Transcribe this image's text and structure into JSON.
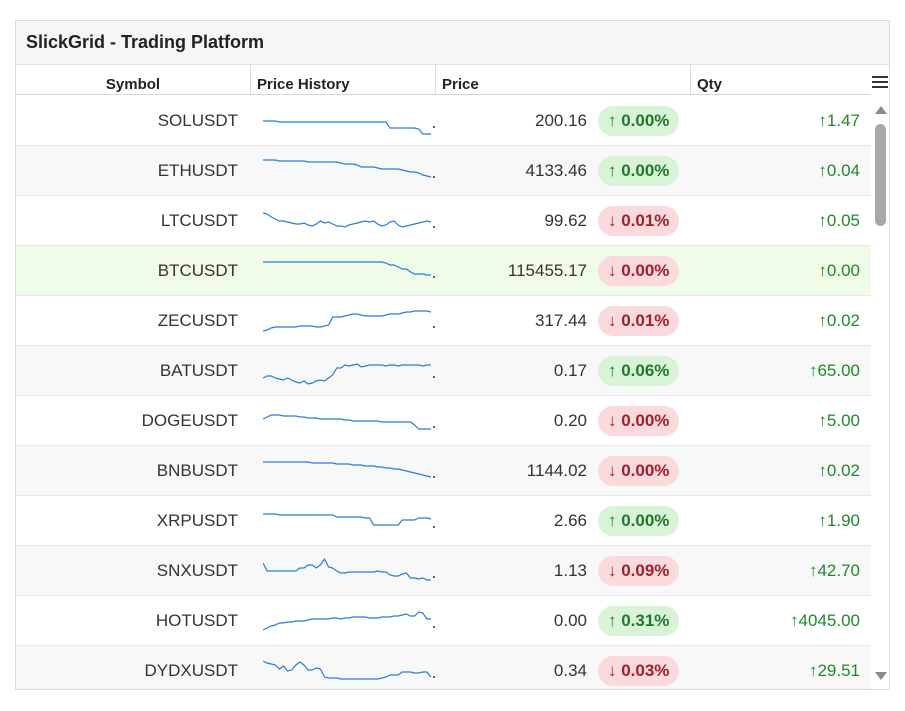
{
  "title": "SlickGrid - Trading Platform",
  "columns": {
    "symbol": "Symbol",
    "history": "Price History",
    "price": "Price",
    "qty": "Qty"
  },
  "colors": {
    "sparkline": "#2b7bd9",
    "up_text": "#1f7a2e",
    "down_text": "#a0202e",
    "active_row": "#f0fbe8"
  },
  "rows": [
    {
      "symbol": "SOLUSDT",
      "price": "200.16",
      "change": "↑ 0.00%",
      "dir": "up",
      "qty": "↑1.47",
      "history": [
        20,
        20,
        20,
        20,
        21,
        21,
        21,
        21,
        21,
        21,
        21,
        21,
        21,
        21,
        21,
        21,
        21,
        21,
        21,
        21,
        21,
        21,
        21,
        21,
        21,
        21,
        21,
        21,
        21,
        21,
        21,
        27,
        27,
        27,
        27,
        27,
        27,
        27,
        28,
        33,
        33,
        33
      ]
    },
    {
      "symbol": "ETHUSDT",
      "price": "4133.46",
      "change": "↑ 0.00%",
      "dir": "up",
      "qty": "↑0.04",
      "history": [
        9,
        9,
        9,
        9,
        10,
        10,
        10,
        10,
        10,
        10,
        10,
        11,
        11,
        11,
        11,
        11,
        11,
        11,
        11,
        12,
        13,
        13,
        13,
        14,
        16,
        16,
        16,
        16,
        17,
        18,
        18,
        18,
        18,
        18,
        19,
        20,
        21,
        21,
        22,
        24,
        25,
        26
      ]
    },
    {
      "symbol": "LTCUSDT",
      "price": "99.62",
      "change": "↓ 0.01%",
      "dir": "down",
      "qty": "↑0.05",
      "history": [
        12,
        13,
        16,
        18,
        20,
        20,
        21,
        22,
        23,
        23,
        22,
        24,
        25,
        23,
        20,
        22,
        21,
        23,
        25,
        25,
        26,
        24,
        23,
        22,
        21,
        20,
        21,
        20,
        23,
        25,
        24,
        21,
        20,
        24,
        26,
        25,
        24,
        23,
        22,
        21,
        20,
        21
      ]
    },
    {
      "symbol": "BTCUSDT",
      "price": "115455.17",
      "change": "↓ 0.00%",
      "dir": "down",
      "qty": "↑0.00",
      "history": [
        11,
        11,
        11,
        11,
        11,
        11,
        11,
        11,
        11,
        11,
        11,
        11,
        11,
        11,
        11,
        11,
        11,
        11,
        11,
        11,
        11,
        11,
        11,
        11,
        11,
        11,
        11,
        11,
        11,
        11,
        12,
        14,
        14,
        16,
        18,
        18,
        21,
        23,
        23,
        23,
        24,
        24
      ]
    },
    {
      "symbol": "ZECUSDT",
      "price": "317.44",
      "change": "↓ 0.01%",
      "dir": "down",
      "qty": "↑0.02",
      "history": [
        30,
        29,
        27,
        26,
        26,
        26,
        26,
        26,
        26,
        25,
        25,
        25,
        25,
        26,
        26,
        25,
        24,
        16,
        16,
        16,
        15,
        14,
        13,
        13,
        14,
        15,
        15,
        15,
        15,
        15,
        14,
        13,
        13,
        13,
        12,
        11,
        11,
        10,
        10,
        10,
        10,
        11
      ]
    },
    {
      "symbol": "BATUSDT",
      "price": "0.17",
      "change": "↑ 0.06%",
      "dir": "up",
      "qty": "↑65.00",
      "history": [
        27,
        25,
        25,
        27,
        28,
        29,
        27,
        29,
        31,
        32,
        30,
        33,
        32,
        30,
        29,
        30,
        27,
        24,
        17,
        17,
        14,
        15,
        14,
        13,
        16,
        15,
        14,
        14,
        14,
        14,
        15,
        14,
        14,
        15,
        14,
        14,
        14,
        14,
        14,
        15,
        14,
        14
      ]
    },
    {
      "symbol": "DOGEUSDT",
      "price": "0.20",
      "change": "↓ 0.00%",
      "dir": "down",
      "qty": "↑5.00",
      "history": [
        18,
        16,
        14,
        14,
        14,
        15,
        15,
        15,
        15,
        16,
        16,
        17,
        17,
        17,
        18,
        18,
        18,
        18,
        18,
        18,
        19,
        19,
        20,
        20,
        20,
        20,
        20,
        20,
        20,
        21,
        21,
        21,
        21,
        21,
        21,
        21,
        21,
        24,
        28,
        28,
        28,
        28
      ]
    },
    {
      "symbol": "BNBUSDT",
      "price": "1144.02",
      "change": "↓ 0.00%",
      "dir": "down",
      "qty": "↑0.02",
      "history": [
        11,
        11,
        11,
        11,
        11,
        11,
        11,
        11,
        11,
        11,
        11,
        11,
        12,
        12,
        12,
        12,
        12,
        12,
        13,
        13,
        13,
        13,
        14,
        14,
        14,
        15,
        15,
        15,
        16,
        16,
        17,
        17,
        18,
        18,
        19,
        20,
        21,
        22,
        23,
        24,
        25,
        26
      ]
    },
    {
      "symbol": "XRPUSDT",
      "price": "2.66",
      "change": "↑ 0.00%",
      "dir": "up",
      "qty": "↑1.90",
      "history": [
        13,
        13,
        13,
        13,
        14,
        14,
        14,
        14,
        14,
        14,
        14,
        14,
        14,
        14,
        14,
        14,
        14,
        14,
        16,
        16,
        16,
        16,
        16,
        16,
        16,
        17,
        17,
        24,
        24,
        24,
        24,
        24,
        24,
        24,
        19,
        19,
        19,
        19,
        17,
        17,
        17,
        18
      ]
    },
    {
      "symbol": "SNXUSDT",
      "price": "1.13",
      "change": "↓ 0.09%",
      "dir": "down",
      "qty": "↑42.70",
      "history": [
        12,
        20,
        20,
        20,
        20,
        20,
        20,
        20,
        20,
        17,
        17,
        14,
        14,
        17,
        14,
        8,
        16,
        17,
        20,
        22,
        22,
        21,
        21,
        21,
        21,
        21,
        21,
        21,
        20,
        21,
        21,
        24,
        25,
        25,
        23,
        22,
        27,
        27,
        28,
        27,
        29,
        29
      ]
    },
    {
      "symbol": "HOTUSDT",
      "price": "0.00",
      "change": "↑ 0.31%",
      "dir": "up",
      "qty": "↑4045.00",
      "history": [
        29,
        27,
        25,
        24,
        22,
        22,
        21,
        21,
        20,
        20,
        20,
        19,
        18,
        18,
        18,
        18,
        18,
        17,
        17,
        18,
        17,
        17,
        16,
        16,
        16,
        16,
        17,
        17,
        17,
        16,
        16,
        16,
        15,
        15,
        14,
        13,
        15,
        15,
        11,
        12,
        18,
        18
      ]
    },
    {
      "symbol": "DYDXUSDT",
      "price": "0.34",
      "change": "↓ 0.03%",
      "dir": "down",
      "qty": "↑29.51",
      "history": [
        10,
        12,
        13,
        14,
        18,
        15,
        20,
        19,
        14,
        11,
        14,
        19,
        19,
        17,
        18,
        26,
        27,
        27,
        27,
        28,
        28,
        28,
        28,
        28,
        28,
        28,
        28,
        28,
        28,
        27,
        26,
        24,
        24,
        24,
        21,
        21,
        21,
        22,
        22,
        21,
        21,
        26
      ]
    }
  ]
}
